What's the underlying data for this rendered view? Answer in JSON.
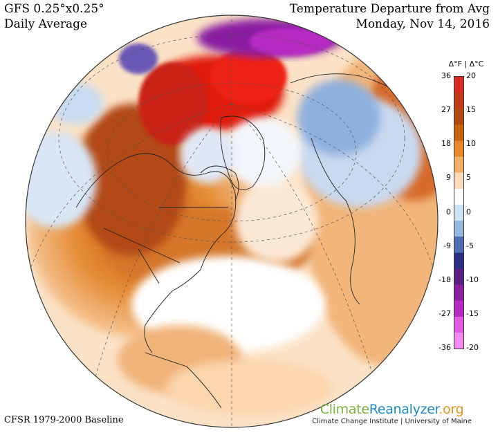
{
  "header_left": {
    "model": "GFS 0.25°x0.25°",
    "period": "Daily Average"
  },
  "header_right": {
    "title": "Temperature Departure from Avg",
    "date": "Monday, Nov 14, 2016"
  },
  "footer_left": "CFSR 1979-2000 Baseline",
  "colorbar": {
    "title": "Δ°F | Δ°C",
    "ticks_f": [
      "36",
      "27",
      "18",
      "9",
      "0",
      "-9",
      "-18",
      "-27",
      "-36"
    ],
    "ticks_c": [
      "20",
      "15",
      "10",
      "5",
      "0",
      "-5",
      "-10",
      "-15",
      "-20"
    ],
    "colors": [
      "#d72b22",
      "#c23a16",
      "#b24a13",
      "#c8650f",
      "#e6892a",
      "#f5b267",
      "#fbdcba",
      "#ffffff",
      "#cfe2f3",
      "#94b9e1",
      "#4f6fb5",
      "#2b2f82",
      "#5d1e86",
      "#8a1fa1",
      "#b62bc2",
      "#e05ee5",
      "#f58af2"
    ]
  },
  "branding": {
    "logo_part1": "Climate",
    "logo_part2": "Reanalyzer",
    "logo_part3": ".org",
    "subtitle": "Climate Change Institute | University of Maine"
  },
  "map": {
    "projection": "orthographic northern hemisphere",
    "regions": [
      {
        "name": "warm-arctic-core",
        "anomaly_c": 20
      },
      {
        "name": "cold-siberia",
        "anomaly_c": -15
      },
      {
        "name": "warm-north-america",
        "anomaly_c": 10
      }
    ]
  }
}
